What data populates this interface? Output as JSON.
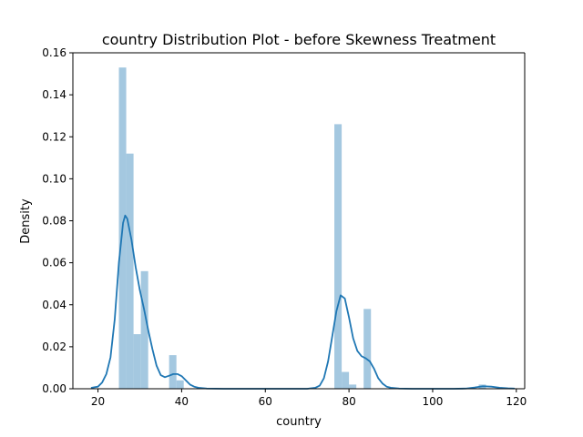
{
  "chart_data": {
    "type": "histogram_kde",
    "title": "country Distribution Plot - before Skewness Treatment",
    "xlabel": "country",
    "ylabel": "Density",
    "xlim": [
      14,
      122
    ],
    "ylim": [
      0,
      0.16
    ],
    "x_ticks": [
      20,
      40,
      60,
      80,
      100,
      120
    ],
    "y_ticks": [
      0.0,
      0.02,
      0.04,
      0.06,
      0.08,
      0.1,
      0.12,
      0.14,
      0.16
    ],
    "x_tick_labels": [
      "20",
      "40",
      "60",
      "80",
      "100",
      "120"
    ],
    "y_tick_labels": [
      "0.00",
      "0.02",
      "0.04",
      "0.06",
      "0.08",
      "0.10",
      "0.12",
      "0.14",
      "0.16"
    ],
    "bar_color": "#a4c8e0",
    "line_color": "#1f77b4",
    "histogram": {
      "bin_width": 1.75,
      "bins": [
        {
          "x0": 25.0,
          "x1": 26.75,
          "density": 0.153
        },
        {
          "x0": 26.75,
          "x1": 28.5,
          "density": 0.112
        },
        {
          "x0": 28.5,
          "x1": 30.25,
          "density": 0.026
        },
        {
          "x0": 30.25,
          "x1": 32.0,
          "density": 0.056
        },
        {
          "x0": 37.0,
          "x1": 38.75,
          "density": 0.016
        },
        {
          "x0": 38.75,
          "x1": 40.5,
          "density": 0.004
        },
        {
          "x0": 76.5,
          "x1": 78.25,
          "density": 0.126
        },
        {
          "x0": 78.25,
          "x1": 80.0,
          "density": 0.008
        },
        {
          "x0": 80.0,
          "x1": 81.75,
          "density": 0.002
        },
        {
          "x0": 83.5,
          "x1": 85.25,
          "density": 0.038
        },
        {
          "x0": 111.0,
          "x1": 112.75,
          "density": 0.002
        }
      ]
    },
    "kde": {
      "x": [
        18.5,
        20,
        21,
        22,
        23,
        24,
        25,
        26,
        26.5,
        27,
        28,
        29,
        30,
        31,
        32,
        33,
        34,
        35,
        36,
        37,
        38,
        39,
        40,
        41,
        42,
        43,
        44,
        46,
        50,
        60,
        70,
        72,
        73,
        74,
        75,
        76,
        77,
        78,
        79,
        80,
        81,
        82,
        83,
        84,
        85,
        86,
        87,
        88,
        89,
        90,
        92,
        95,
        100,
        105,
        108,
        110,
        112,
        114,
        116,
        118,
        119.5
      ],
      "y": [
        0.0005,
        0.001,
        0.003,
        0.007,
        0.015,
        0.033,
        0.06,
        0.079,
        0.0825,
        0.081,
        0.071,
        0.058,
        0.047,
        0.038,
        0.028,
        0.019,
        0.011,
        0.0065,
        0.0055,
        0.0062,
        0.007,
        0.007,
        0.006,
        0.004,
        0.002,
        0.001,
        0.0005,
        0.0001,
        0.0,
        0.0,
        0.0,
        0.0005,
        0.0015,
        0.005,
        0.013,
        0.025,
        0.037,
        0.0445,
        0.043,
        0.034,
        0.024,
        0.018,
        0.0155,
        0.0145,
        0.013,
        0.0095,
        0.005,
        0.0025,
        0.001,
        0.0005,
        0.0001,
        0.0,
        0.0,
        0.0,
        0.0001,
        0.0006,
        0.0012,
        0.001,
        0.0005,
        0.0002,
        0.0001
      ]
    }
  }
}
